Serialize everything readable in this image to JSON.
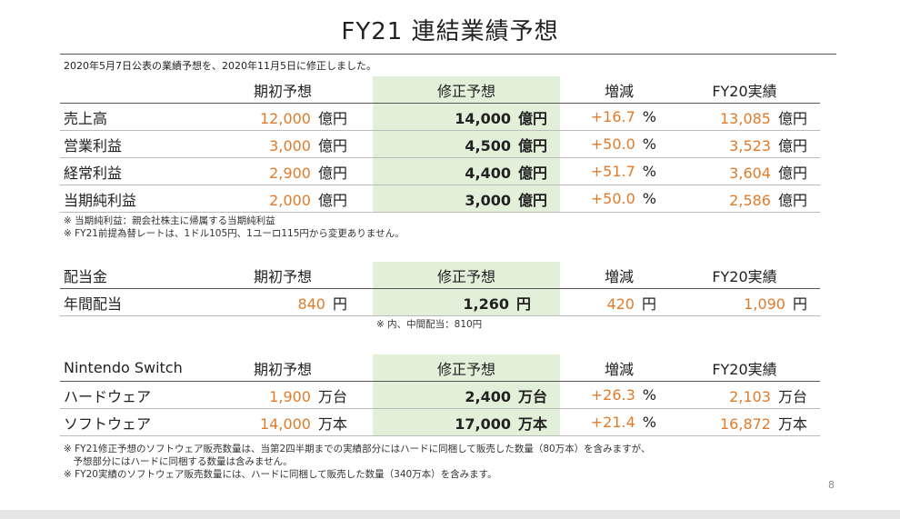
{
  "title": "FY21 連結業績予想",
  "intro": "2020年5月7日公表の業績予想を、2020年11月5日に修正しました。",
  "headers": [
    "期初予想",
    "修正予想",
    "増減",
    "FY20実績"
  ],
  "earnings": {
    "rows": [
      {
        "label": "売上高",
        "initial": "12,000",
        "initial_unit": "億円",
        "revised": "14,000",
        "revised_unit": "億円",
        "change": "+16.7",
        "change_unit": "%",
        "fy20": "13,085",
        "fy20_unit": "億円"
      },
      {
        "label": "営業利益",
        "initial": "3,000",
        "initial_unit": "億円",
        "revised": "4,500",
        "revised_unit": "億円",
        "change": "+50.0",
        "change_unit": "%",
        "fy20": "3,523",
        "fy20_unit": "億円"
      },
      {
        "label": "経常利益",
        "initial": "2,900",
        "initial_unit": "億円",
        "revised": "4,400",
        "revised_unit": "億円",
        "change": "+51.7",
        "change_unit": "%",
        "fy20": "3,604",
        "fy20_unit": "億円"
      },
      {
        "label": "当期純利益",
        "initial": "2,000",
        "initial_unit": "億円",
        "revised": "3,000",
        "revised_unit": "億円",
        "change": "+50.0",
        "change_unit": "%",
        "fy20": "2,586",
        "fy20_unit": "億円"
      }
    ],
    "notes": [
      "※ 当期純利益：親会社株主に帰属する当期純利益",
      "※ FY21前提為替レートは、1ドル105円、1ユーロ115円から変更ありません。"
    ]
  },
  "dividend": {
    "section_label": "配当金",
    "rows": [
      {
        "label": "年間配当",
        "initial": "840",
        "initial_unit": "円",
        "revised": "1,260",
        "revised_unit": "円",
        "change": "420",
        "change_unit": "円",
        "fy20": "1,090",
        "fy20_unit": "円"
      }
    ],
    "note": "※ 内、中間配当：810円"
  },
  "switch": {
    "section_label": "Nintendo Switch",
    "rows": [
      {
        "label": "ハードウェア",
        "initial": "1,900",
        "initial_unit": "万台",
        "revised": "2,400",
        "revised_unit": "万台",
        "change": "+26.3",
        "change_unit": "%",
        "fy20": "2,103",
        "fy20_unit": "万台"
      },
      {
        "label": "ソフトウェア",
        "initial": "14,000",
        "initial_unit": "万本",
        "revised": "17,000",
        "revised_unit": "万本",
        "change": "+21.4",
        "change_unit": "%",
        "fy20": "16,872",
        "fy20_unit": "万本"
      }
    ],
    "notes": [
      "※ FY21修正予想のソフトウェア販売数量は、当第2四半期までの実績部分にはハードに同梱して販売した数量（80万本）を含みますが、",
      "　予想部分にはハードに同梱する数量は含みません。",
      "※ FY20実績のソフトウェア販売数量には、ハードに同梱して販売した数量（340万本）を含みます。"
    ]
  },
  "page_number": "8"
}
